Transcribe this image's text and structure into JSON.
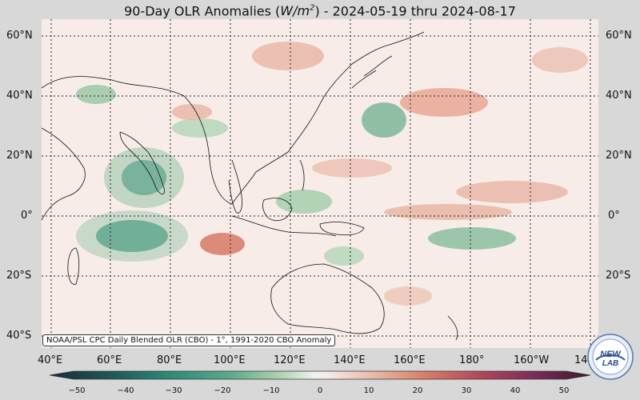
{
  "title": {
    "prefix": "90-Day OLR Anomalies (",
    "unit_base": "W/m",
    "unit_exp": "2",
    "suffix": ") - 2024-05-19 thru 2024-08-17"
  },
  "lat_labels_left": [
    "60°N",
    "40°N",
    "20°N",
    "0°",
    "20°S",
    "40°S"
  ],
  "lat_labels_right": [
    "60°N",
    "40°N",
    "20°N",
    "0°",
    "20°S"
  ],
  "lon_labels": [
    "40°E",
    "60°E",
    "80°E",
    "100°E",
    "120°E",
    "140°E",
    "160°E",
    "180°",
    "160°W",
    "14"
  ],
  "credit": "NOAA/PSL CPC Daily Blended OLR (CBO) - 1°, 1991-2020 CBO Anomaly",
  "colorbar": {
    "ticks": [
      "−50",
      "−40",
      "−30",
      "−20",
      "−10",
      "0",
      "10",
      "20",
      "30",
      "40",
      "50"
    ],
    "colors": [
      "#1b2a3a",
      "#1f5a5a",
      "#2a8a78",
      "#5aa88a",
      "#a8cfae",
      "#e6efe6",
      "#f7ecea",
      "#e9b8a6",
      "#d77a66",
      "#b0465a",
      "#7a2a5a",
      "#3a1a2a"
    ]
  },
  "logo": {
    "text": "NEW LAB",
    "name": "noaa-psl-logo"
  },
  "colors": {
    "map_bg": "#f7ece8",
    "grid": "#222222",
    "coast": "#111111"
  }
}
